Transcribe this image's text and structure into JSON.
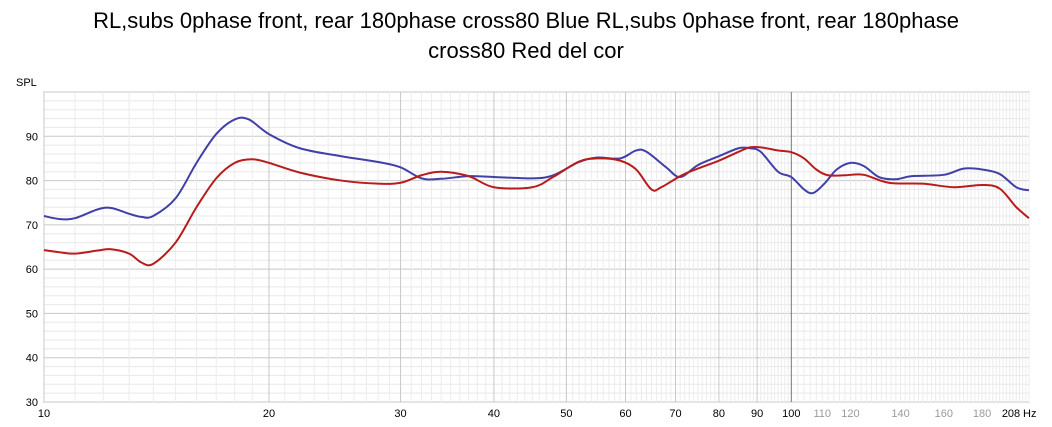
{
  "chart_data": {
    "type": "line",
    "title": "RL,subs 0phase front, rear 180phase cross80 Blue RL,subs 0phase front, rear 180phase\ncross80 Red del cor",
    "ylabel": "SPL",
    "xunit": "Hz",
    "xscale": "log",
    "xlim": [
      10,
      208
    ],
    "ylim": [
      30,
      100
    ],
    "grid": true,
    "x_ticks_major": [
      {
        "value": 10,
        "label": "10"
      },
      {
        "value": 20,
        "label": "20"
      },
      {
        "value": 30,
        "label": "30"
      },
      {
        "value": 40,
        "label": "40"
      },
      {
        "value": 50,
        "label": "50"
      },
      {
        "value": 60,
        "label": "60"
      },
      {
        "value": 70,
        "label": "70"
      },
      {
        "value": 80,
        "label": "80"
      },
      {
        "value": 90,
        "label": "90"
      },
      {
        "value": 100,
        "label": "100"
      },
      {
        "value": 208,
        "label": "208"
      }
    ],
    "x_ticks_minor": [
      {
        "value": 110,
        "label": "110"
      },
      {
        "value": 120,
        "label": "120"
      },
      {
        "value": 140,
        "label": "140"
      },
      {
        "value": 160,
        "label": "160"
      },
      {
        "value": 180,
        "label": "180"
      }
    ],
    "y_ticks": [
      30,
      40,
      50,
      60,
      70,
      80,
      90
    ],
    "series": [
      {
        "color": "#4040a8",
        "points": [
          [
            10,
            72
          ],
          [
            10.5,
            71.3
          ],
          [
            11,
            71.5
          ],
          [
            11.8,
            73.5
          ],
          [
            12.3,
            73.8
          ],
          [
            13,
            72.5
          ],
          [
            13.5,
            71.8
          ],
          [
            14,
            72
          ],
          [
            15,
            76
          ],
          [
            16,
            84
          ],
          [
            17,
            90.5
          ],
          [
            18,
            93.8
          ],
          [
            18.8,
            93.8
          ],
          [
            20,
            90.5
          ],
          [
            22,
            87.3
          ],
          [
            25,
            85.5
          ],
          [
            28,
            84.2
          ],
          [
            30,
            83
          ],
          [
            32,
            80.5
          ],
          [
            34,
            80.4
          ],
          [
            37,
            81
          ],
          [
            40,
            80.8
          ],
          [
            45,
            80.5
          ],
          [
            48,
            81.2
          ],
          [
            52,
            84.2
          ],
          [
            55,
            85.2
          ],
          [
            59,
            85
          ],
          [
            62,
            86.8
          ],
          [
            64,
            86.5
          ],
          [
            68,
            83
          ],
          [
            71,
            80.8
          ],
          [
            75,
            83.5
          ],
          [
            80,
            85.5
          ],
          [
            85,
            87.3
          ],
          [
            88,
            87.3
          ],
          [
            91,
            86.5
          ],
          [
            96,
            82
          ],
          [
            100,
            80.8
          ],
          [
            104,
            78
          ],
          [
            107,
            77.2
          ],
          [
            111,
            79.5
          ],
          [
            115,
            82.5
          ],
          [
            120,
            84
          ],
          [
            125,
            83.3
          ],
          [
            131,
            80.8
          ],
          [
            138,
            80.3
          ],
          [
            145,
            81
          ],
          [
            160,
            81.3
          ],
          [
            170,
            82.7
          ],
          [
            180,
            82.5
          ],
          [
            190,
            81.5
          ],
          [
            200,
            78.5
          ],
          [
            208,
            77.8
          ]
        ]
      },
      {
        "color": "#b81c1c",
        "points": [
          [
            10,
            64.3
          ],
          [
            10.5,
            63.8
          ],
          [
            11,
            63.5
          ],
          [
            11.8,
            64.2
          ],
          [
            12.3,
            64.5
          ],
          [
            13,
            63.5
          ],
          [
            13.5,
            61.5
          ],
          [
            14,
            61.2
          ],
          [
            15,
            66
          ],
          [
            16,
            74
          ],
          [
            17,
            80.5
          ],
          [
            18,
            84
          ],
          [
            19,
            84.8
          ],
          [
            20,
            84
          ],
          [
            22,
            81.8
          ],
          [
            25,
            80
          ],
          [
            28,
            79.3
          ],
          [
            30,
            79.5
          ],
          [
            32,
            81.2
          ],
          [
            34,
            82
          ],
          [
            37,
            81
          ],
          [
            40,
            78.5
          ],
          [
            45,
            78.5
          ],
          [
            48,
            80.8
          ],
          [
            52,
            84.3
          ],
          [
            55,
            85
          ],
          [
            59,
            84.5
          ],
          [
            62,
            82.5
          ],
          [
            65,
            78
          ],
          [
            67,
            78.5
          ],
          [
            72,
            81.5
          ],
          [
            80,
            84.5
          ],
          [
            85,
            86.5
          ],
          [
            88,
            87.5
          ],
          [
            91,
            87.5
          ],
          [
            96,
            86.8
          ],
          [
            100,
            86.4
          ],
          [
            104,
            85
          ],
          [
            108,
            82.5
          ],
          [
            112,
            81.2
          ],
          [
            118,
            81.2
          ],
          [
            125,
            81.3
          ],
          [
            135,
            79.5
          ],
          [
            150,
            79.3
          ],
          [
            165,
            78.5
          ],
          [
            180,
            79
          ],
          [
            190,
            78.2
          ],
          [
            200,
            74
          ],
          [
            208,
            71.5
          ]
        ]
      }
    ]
  }
}
